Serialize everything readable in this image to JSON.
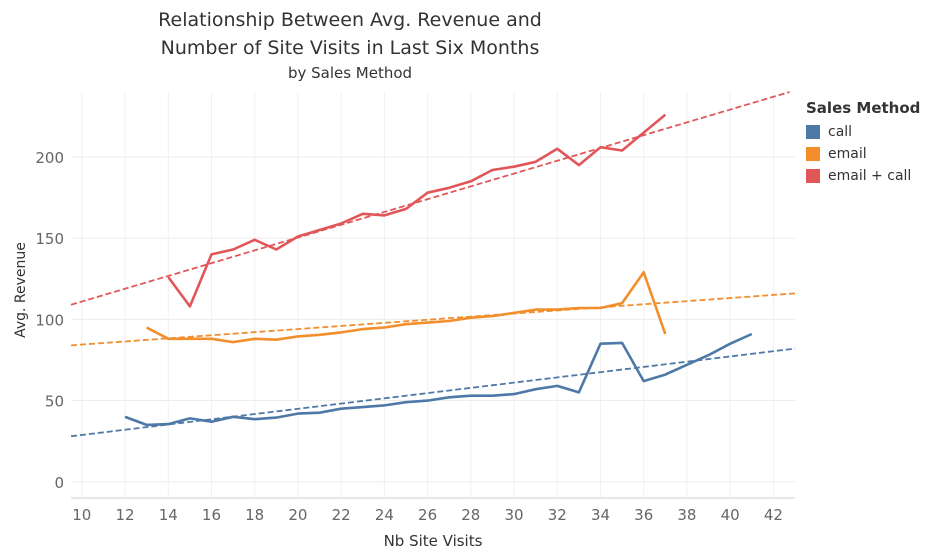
{
  "chart_data": {
    "type": "line",
    "title": "Relationship Between Avg. Revenue and",
    "title_line2": "Number of Site Visits in Last Six Months",
    "subtitle": "by Sales Method",
    "xlabel": "Nb Site Visits",
    "ylabel": "Avg. Revenue",
    "xlim": [
      9.5,
      43
    ],
    "ylim": [
      -10,
      240
    ],
    "x_ticks": [
      10,
      12,
      14,
      16,
      18,
      20,
      22,
      24,
      26,
      28,
      30,
      32,
      34,
      36,
      38,
      40,
      42
    ],
    "y_ticks": [
      0,
      50,
      100,
      150,
      200
    ],
    "grid": true,
    "legend": {
      "title": "Sales Method",
      "position": "right"
    },
    "series": [
      {
        "name": "call",
        "color": "#4e79a7",
        "x": [
          12,
          13,
          14,
          15,
          16,
          17,
          18,
          19,
          20,
          21,
          22,
          23,
          24,
          25,
          26,
          27,
          28,
          29,
          30,
          31,
          32,
          33,
          34,
          35,
          36,
          37,
          38,
          39,
          40,
          41
        ],
        "values": [
          40,
          35,
          35.5,
          39,
          37,
          40,
          38.5,
          39.5,
          42,
          42.5,
          45,
          46,
          47,
          49,
          50,
          52,
          53,
          53,
          54,
          57,
          59,
          55,
          85,
          85.5,
          62,
          66,
          72,
          78,
          85,
          91
        ],
        "trend": [
          28,
          82
        ]
      },
      {
        "name": "email",
        "color": "#f28e2b",
        "x": [
          13,
          14,
          15,
          16,
          17,
          18,
          19,
          20,
          21,
          22,
          23,
          24,
          25,
          26,
          27,
          28,
          29,
          30,
          31,
          32,
          33,
          34,
          35,
          36,
          37
        ],
        "values": [
          95,
          88,
          88,
          88,
          86,
          88,
          87.5,
          89.5,
          90.5,
          92,
          94,
          95,
          97,
          98,
          99,
          101,
          102,
          104,
          106,
          106,
          107,
          107,
          110,
          129,
          91
        ],
        "trend": [
          84,
          116
        ]
      },
      {
        "name": "email + call",
        "color": "#e15759",
        "x": [
          14,
          15,
          16,
          17,
          18,
          19,
          20,
          21,
          22,
          23,
          24,
          25,
          26,
          27,
          28,
          29,
          30,
          31,
          32,
          33,
          34,
          35,
          36,
          37
        ],
        "values": [
          126,
          108,
          140,
          143,
          149,
          143,
          151,
          155,
          159,
          165,
          164,
          168,
          178,
          181,
          185,
          192,
          194,
          197,
          205,
          195,
          206,
          204,
          215,
          226
        ],
        "trend": [
          109,
          241
        ]
      }
    ]
  }
}
